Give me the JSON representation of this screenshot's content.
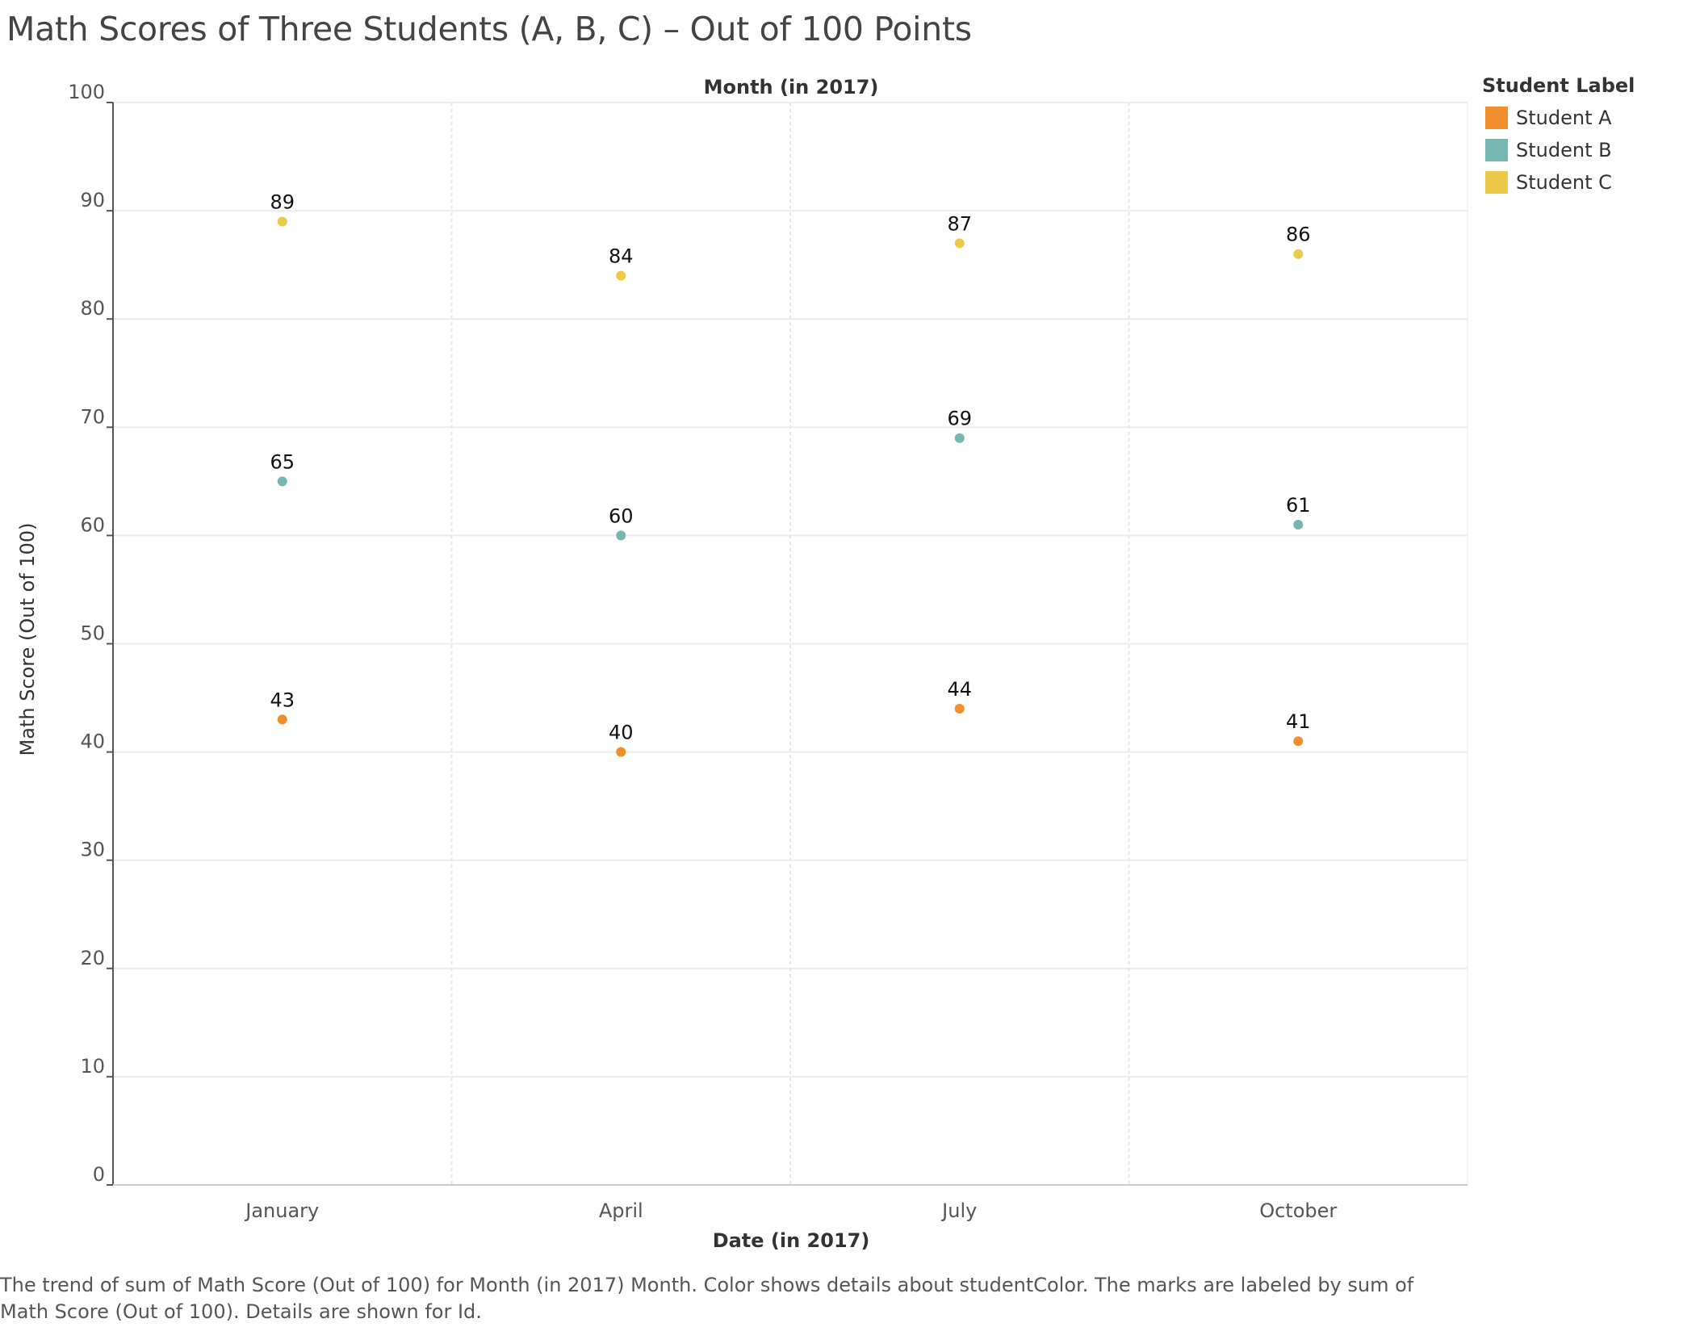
{
  "page": {
    "caption": "The trend of sum of Math Score (Out of 100) for Month (in 2017) Month.  Color shows details about studentColor.  The marks are labeled by sum of Math Score (Out of 100).  Details are shown for Id."
  },
  "chart_data": {
    "type": "scatter",
    "title": "Math Scores of Three Students (A, B, C) – Out of 100 Points",
    "top_header": "Month (in 2017)",
    "xlabel": "Date (in 2017)",
    "ylabel": "Math Score (Out of 100)",
    "categories": [
      "January",
      "April",
      "July",
      "October"
    ],
    "ylim": [
      0,
      100
    ],
    "yticks": [
      0,
      10,
      20,
      30,
      40,
      50,
      60,
      70,
      80,
      90,
      100
    ],
    "grid": true,
    "data_labels": true,
    "legend": {
      "title": "Student Label",
      "placement": "top-right"
    },
    "series": [
      {
        "name": "Student A",
        "color": "#F28E2B",
        "values": [
          43,
          40,
          44,
          41
        ]
      },
      {
        "name": "Student B",
        "color": "#76B7B2",
        "values": [
          65,
          60,
          69,
          61
        ]
      },
      {
        "name": "Student C",
        "color": "#EDC948",
        "values": [
          89,
          84,
          87,
          86
        ]
      }
    ]
  }
}
